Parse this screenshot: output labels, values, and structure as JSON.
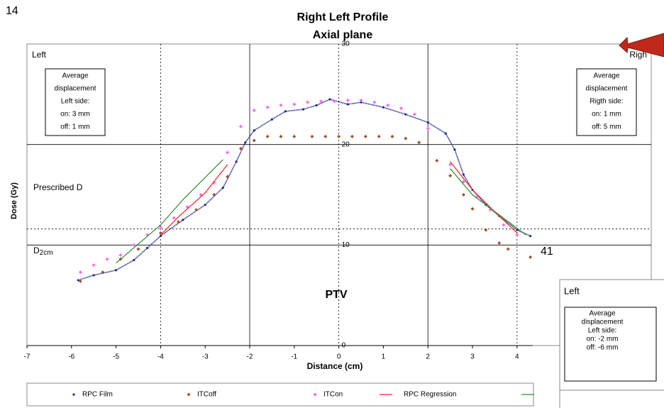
{
  "chart_data": {
    "type": "scatter",
    "page_number": "14",
    "side_number": "41",
    "title": "Right Left Profile",
    "subtitle": "Axial plane",
    "xlabel": "Distance (cm)",
    "ylabel": "Dose (Gy)",
    "xlim": [
      -7,
      4.35
    ],
    "ylim": [
      0,
      30
    ],
    "xticks": [
      -7,
      -6,
      -5,
      -4,
      -3,
      -2,
      -1,
      0,
      1,
      2,
      3,
      4
    ],
    "yticks": [
      0,
      10,
      20,
      30
    ],
    "grid": true,
    "vlines": [
      {
        "value": -4,
        "style": "dashed"
      },
      {
        "value": -2,
        "style": "solid"
      },
      {
        "value": 0,
        "style": "dashed"
      },
      {
        "value": 2,
        "style": "solid"
      },
      {
        "value": 4,
        "style": "dashed"
      }
    ],
    "hlines": [
      {
        "value": 11.6,
        "style": "dashed"
      }
    ],
    "annotations": {
      "left": "Left",
      "right": "Righ",
      "prescribed": "Prescribed D",
      "d2cm": "D",
      "d2cm_sub": "2cm",
      "ptv": "PTV"
    },
    "left_box": [
      "Average",
      "displacement",
      "Left side:",
      "on: 3 mm",
      "off: 1 mm"
    ],
    "right_box": [
      "Average",
      "displacement",
      "Rigth side:",
      "on: 1 mm",
      "off: 5 mm"
    ],
    "inset": {
      "label": "Left",
      "box": [
        "Average",
        "displacement",
        "Left side:",
        "on: -2 mm",
        "off: -6 mm"
      ]
    },
    "legend": "bottom",
    "series": [
      {
        "name": "RPC Film",
        "color": "#1f2a8c",
        "mark": "dots",
        "x": [
          -5.85,
          -5.5,
          -5,
          -4.6,
          -4.3,
          -4,
          -3.5,
          -3,
          -2.6,
          -2.3,
          -2.1,
          -1.9,
          -1.5,
          -1.2,
          -0.8,
          -0.5,
          -0.2,
          0.2,
          0.5,
          1,
          1.5,
          2,
          2.4,
          2.6,
          2.8,
          3,
          3.3,
          3.6,
          4,
          4.3
        ],
        "values": [
          6.5,
          7.0,
          7.5,
          8.5,
          9.7,
          10.9,
          12.5,
          14.0,
          15.7,
          18.3,
          20.2,
          21.4,
          22.5,
          23.3,
          23.5,
          23.9,
          24.5,
          24.0,
          24.2,
          23.7,
          23.0,
          22.2,
          21.1,
          19.5,
          17.0,
          15.5,
          14.0,
          12.9,
          11.5,
          10.9
        ]
      },
      {
        "name": "ITCoff",
        "color": "#a0522d",
        "mark": "diamond",
        "x": [
          -5.8,
          -5.3,
          -4.9,
          -4.5,
          -4.0,
          -3.6,
          -3.2,
          -2.8,
          -2.5,
          -2.2,
          -1.9,
          -1.6,
          -1.3,
          -1.0,
          -0.6,
          -0.3,
          0,
          0.3,
          0.6,
          0.9,
          1.2,
          1.5,
          1.8,
          2.2,
          2.5,
          2.8,
          3.0,
          3.3,
          3.6,
          3.8,
          4.3
        ],
        "values": [
          6.4,
          7.3,
          8.6,
          9.6,
          11.2,
          12.3,
          13.5,
          15.0,
          16.8,
          19.6,
          20.4,
          20.8,
          20.8,
          20.8,
          20.8,
          20.8,
          20.8,
          20.8,
          20.8,
          20.8,
          20.8,
          20.6,
          20.2,
          18.4,
          16.9,
          15.0,
          13.6,
          11.5,
          10.2,
          9.6,
          8.8
        ]
      },
      {
        "name": "ITCon",
        "color": "#ff66ff",
        "mark": "diamond",
        "x": [
          -5.8,
          -5.5,
          -5.2,
          -4.9,
          -4.6,
          -4.3,
          -4.0,
          -3.7,
          -3.4,
          -3.1,
          -2.8,
          -2.5,
          -2.2,
          -1.9,
          -1.6,
          -1.3,
          -1.0,
          -0.7,
          -0.4,
          -0.1,
          0.2,
          0.5,
          0.8,
          1.1,
          1.4,
          1.7,
          2.0,
          2.5,
          2.8,
          3.1,
          3.4,
          3.7,
          4.0
        ],
        "values": [
          7.3,
          8.0,
          8.6,
          9.0,
          10.0,
          11.0,
          11.8,
          12.7,
          13.8,
          15.0,
          16.2,
          19.2,
          21.8,
          23.4,
          23.7,
          23.9,
          24.0,
          24.2,
          24.3,
          24.3,
          24.4,
          24.4,
          24.2,
          23.9,
          23.6,
          23.0,
          21.6,
          18.0,
          16.3,
          14.8,
          13.5,
          12.0,
          11.0
        ]
      },
      {
        "name": "RPC Regression",
        "color": "#ff2020",
        "mark": "line",
        "x": [
          -4.0,
          -3.6,
          -3.0,
          -2.5,
          null,
          2.5,
          3.0,
          3.5,
          4.0
        ],
        "values": [
          11.0,
          12.8,
          15.2,
          18.0,
          null,
          18.3,
          15.5,
          13.3,
          11.2
        ]
      },
      {
        "color": "#2e8b2e",
        "mark": "line",
        "x": [
          -5.0,
          -4.0,
          -3.5,
          -2.6,
          null,
          2.5,
          3.0,
          3.6,
          4.2
        ],
        "values": [
          8.2,
          12.0,
          14.5,
          18.5,
          null,
          17.6,
          15.0,
          13.0,
          11.0
        ]
      }
    ]
  }
}
